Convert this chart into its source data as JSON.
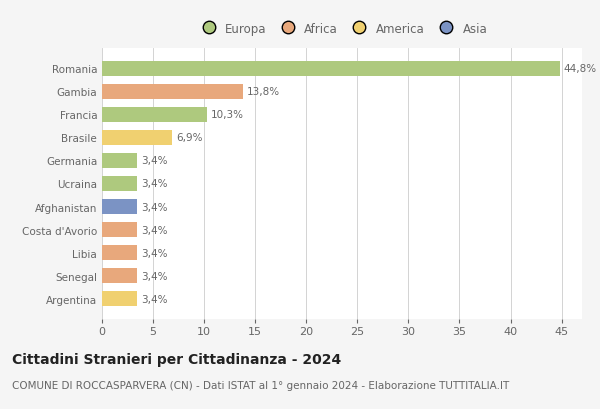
{
  "countries": [
    "Romania",
    "Gambia",
    "Francia",
    "Brasile",
    "Germania",
    "Ucraina",
    "Afghanistan",
    "Costa d'Avorio",
    "Libia",
    "Senegal",
    "Argentina"
  ],
  "values": [
    44.8,
    13.8,
    10.3,
    6.9,
    3.4,
    3.4,
    3.4,
    3.4,
    3.4,
    3.4,
    3.4
  ],
  "labels": [
    "44,8%",
    "13,8%",
    "10,3%",
    "6,9%",
    "3,4%",
    "3,4%",
    "3,4%",
    "3,4%",
    "3,4%",
    "3,4%",
    "3,4%"
  ],
  "colors": [
    "#aec97e",
    "#e8a87c",
    "#aec97e",
    "#f0d070",
    "#aec97e",
    "#aec97e",
    "#7b93c4",
    "#e8a87c",
    "#e8a87c",
    "#e8a87c",
    "#f0d070"
  ],
  "legend_labels": [
    "Europa",
    "Africa",
    "America",
    "Asia"
  ],
  "legend_colors": [
    "#aec97e",
    "#e8a87c",
    "#f0d070",
    "#7b93c4"
  ],
  "xlim": [
    0,
    47
  ],
  "xticks": [
    0,
    5,
    10,
    15,
    20,
    25,
    30,
    35,
    40,
    45
  ],
  "title": "Cittadini Stranieri per Cittadinanza - 2024",
  "subtitle": "COMUNE DI ROCCASPARVERA (CN) - Dati ISTAT al 1° gennaio 2024 - Elaborazione TUTTITALIA.IT",
  "background_color": "#f5f5f5",
  "bar_background": "#ffffff",
  "grid_color": "#cccccc",
  "text_color": "#666666",
  "title_color": "#222222",
  "subtitle_color": "#666666",
  "title_fontsize": 10,
  "subtitle_fontsize": 7.5,
  "label_fontsize": 7.5,
  "tick_fontsize": 8,
  "legend_fontsize": 8.5,
  "bar_height": 0.65
}
